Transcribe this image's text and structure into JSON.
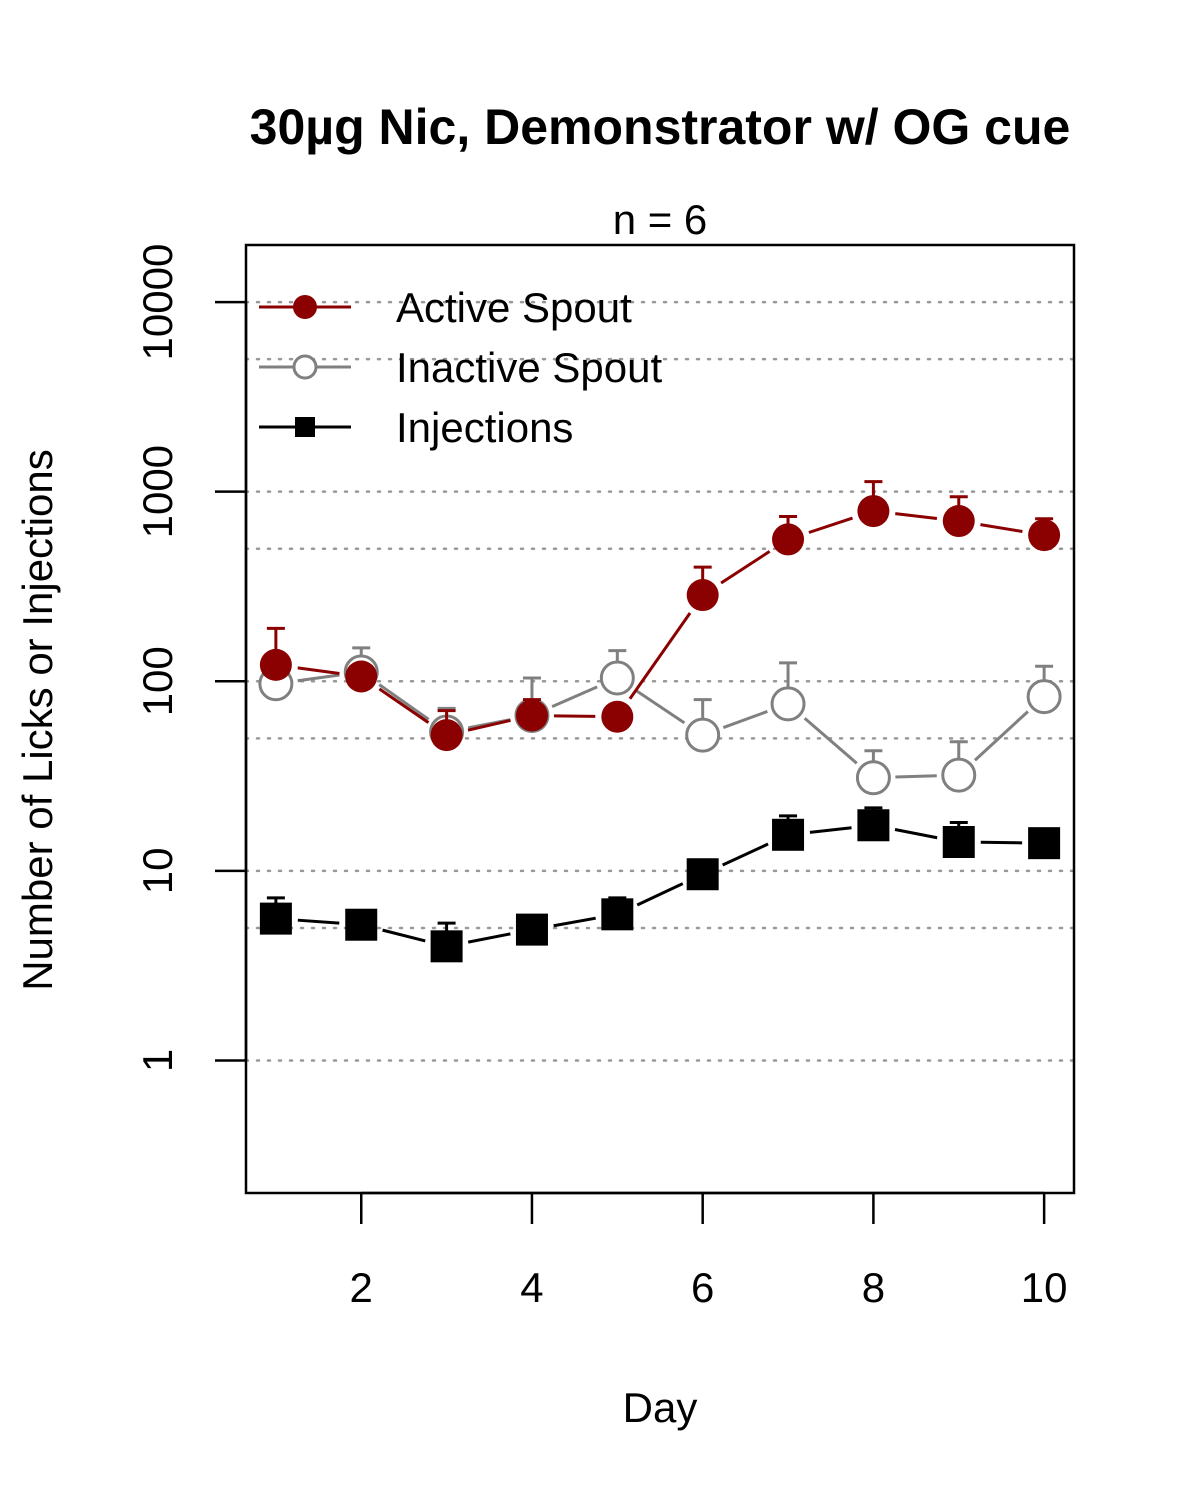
{
  "chart_data": {
    "type": "line",
    "title": "30µg Nic, Demonstrator w/ OG cue",
    "subtitle": "n = 6",
    "xlabel": "Day",
    "ylabel": "Number of Licks or Injections",
    "x_scale": "linear",
    "y_scale": "log",
    "xlim": [
      0.65,
      10.35
    ],
    "ylim": [
      0.2,
      20000
    ],
    "x_ticks": [
      2,
      4,
      6,
      8,
      10
    ],
    "x_tick_labels": [
      "2",
      "4",
      "6",
      "8",
      "10"
    ],
    "y_ticks": [
      1,
      10,
      100,
      1000,
      10000
    ],
    "y_tick_labels": [
      "1",
      "10",
      "100",
      "1000",
      "10000"
    ],
    "gridlines_y": [
      1,
      5,
      10,
      50,
      100,
      500,
      1000,
      5000,
      10000
    ],
    "grid": "horizontal dotted",
    "legend_position": "top-left",
    "x": [
      1,
      2,
      3,
      4,
      5,
      6,
      7,
      8,
      9,
      10
    ],
    "series": [
      {
        "name": "Active Spout",
        "color": "#8b0000",
        "marker": "filled-circle",
        "values": [
          122,
          106,
          52,
          66,
          65,
          285,
          560,
          790,
          700,
          590
        ],
        "error_upper": [
          190,
          115,
          70,
          80,
          68,
          400,
          740,
          1130,
          940,
          720
        ]
      },
      {
        "name": "Inactive Spout",
        "color": "#808080",
        "marker": "open-circle",
        "values": [
          97,
          112,
          54,
          66,
          104,
          52,
          76,
          31,
          32,
          83
        ],
        "error_upper": [
          125,
          150,
          72,
          104,
          145,
          80,
          125,
          43,
          48,
          120
        ]
      },
      {
        "name": "Injections",
        "color": "#000000",
        "marker": "filled-square",
        "values": [
          5.6,
          5.2,
          4.0,
          4.9,
          5.9,
          9.6,
          15.5,
          17.4,
          14.2,
          14.0
        ],
        "error_upper": [
          7.2,
          6.0,
          5.3,
          5.3,
          7.2,
          10.8,
          19.5,
          21.5,
          18.0,
          15.0
        ]
      }
    ]
  }
}
